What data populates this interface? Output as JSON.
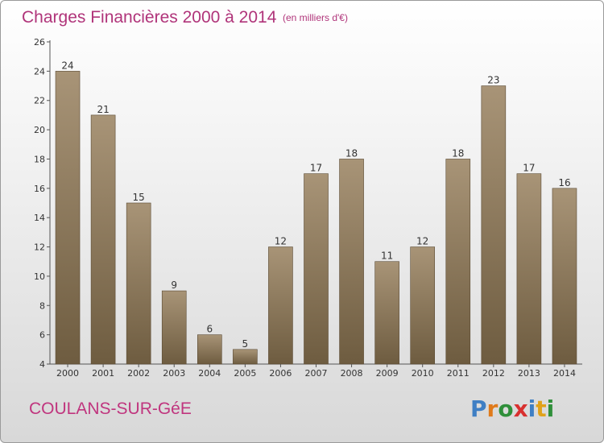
{
  "chart_data": {
    "type": "bar",
    "title": "Charges Financières 2000 à 2014",
    "subtitle": "(en milliers d'€)",
    "categories": [
      "2000",
      "2001",
      "2002",
      "2003",
      "2004",
      "2005",
      "2006",
      "2007",
      "2008",
      "2009",
      "2010",
      "2011",
      "2012",
      "2013",
      "2014"
    ],
    "values": [
      24,
      21,
      15,
      9,
      6,
      5,
      12,
      17,
      18,
      11,
      12,
      18,
      23,
      17,
      16
    ],
    "ylim": [
      4,
      26
    ],
    "yticks": [
      4,
      6,
      8,
      10,
      12,
      14,
      16,
      18,
      20,
      22,
      24,
      26
    ],
    "grid": false,
    "bar_color_light": "#a89477",
    "bar_color_dark": "#6e5c40"
  },
  "footer": {
    "commune": "COULANS-SUR-GéE",
    "logo": "Proxiti",
    "logo_colors": [
      "#3f7fc4",
      "#e07a1a",
      "#2f8f3a",
      "#d8302f",
      "#3f7fc4",
      "#e0a21a",
      "#2f8f3a"
    ]
  }
}
